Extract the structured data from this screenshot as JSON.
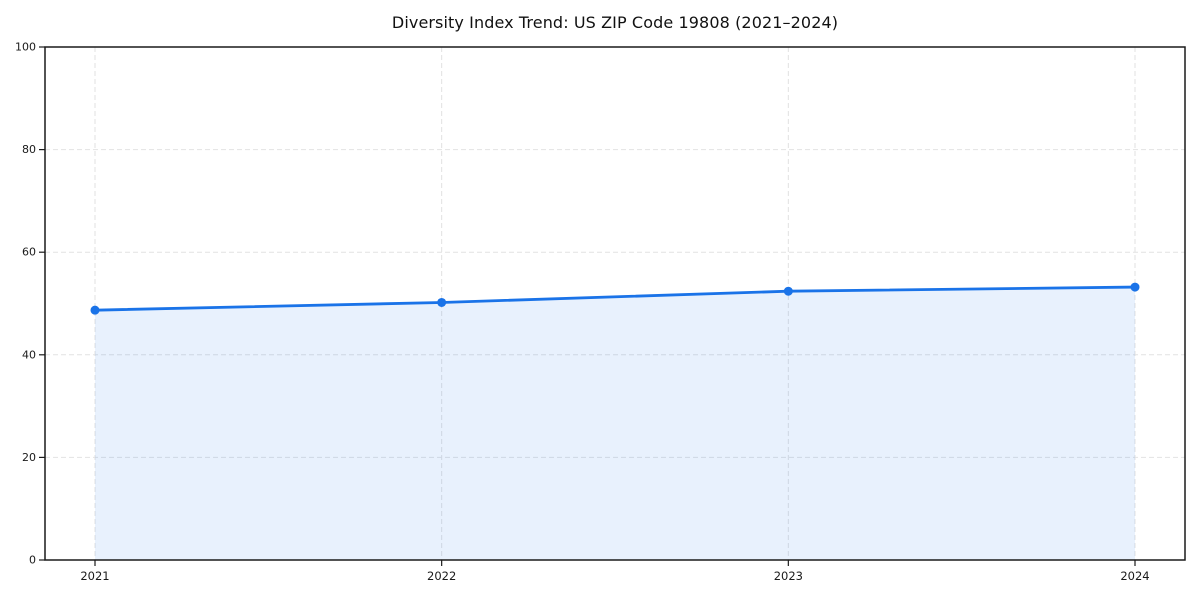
{
  "chart_data": {
    "type": "line",
    "title": "Diversity Index Trend: US ZIP Code 19808 (2021–2024)",
    "x": [
      2021,
      2022,
      2023,
      2024
    ],
    "xticks": [
      2021,
      2022,
      2023,
      2024
    ],
    "series": [
      {
        "name": "Diversity Index",
        "values": [
          48.7,
          50.2,
          52.4,
          53.2
        ]
      }
    ],
    "xlabel": "",
    "ylabel": "",
    "ylim": [
      0,
      100
    ],
    "yticks": [
      0,
      20,
      40,
      60,
      80,
      100
    ],
    "grid": true,
    "legend": "none",
    "area_fill_to_zero": true,
    "colors": {
      "line": "#1a73e8",
      "marker": "#1a73e8",
      "fill": "#1a73e8",
      "fill_opacity": 0.1,
      "grid": "#e2e2e2",
      "spine": "#1a1a1a",
      "tick_label": "#1a1a1a",
      "title": "#111111",
      "background": "#ffffff"
    }
  }
}
